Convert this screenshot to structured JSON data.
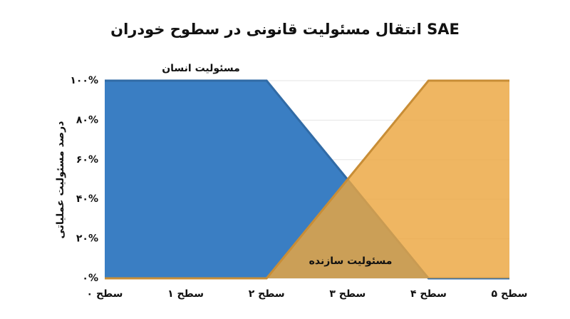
{
  "chart_data": {
    "type": "area",
    "title": "انتقال مسئولیت قانونی در سطوح خودران SAE",
    "y_label": "درصد مسئولیت عملیاتی",
    "categories": [
      "سطح ٠",
      "سطح ۱",
      "سطح ۲",
      "سطح ۳",
      "سطح ۴",
      "سطح ۵"
    ],
    "series": [
      {
        "color": "#3a7ec3",
        "values": [
          100,
          100,
          100,
          50,
          0,
          0
        ]
      },
      {
        "color": "#eba63f",
        "values": [
          0,
          0,
          0,
          50,
          100,
          100
        ]
      }
    ],
    "annotations": [
      "مسئولیت انسان",
      "مسئولیت سازنده"
    ],
    "ylim": [
      0,
      100
    ],
    "yticks": [
      {
        "value": 0,
        "label": "٠%"
      },
      {
        "value": 20,
        "label": "۲۰%"
      },
      {
        "value": 40,
        "label": "۴۰%"
      },
      {
        "value": 60,
        "label": "۶۰%"
      },
      {
        "value": 80,
        "label": "۸۰%"
      },
      {
        "value": 100,
        "label": "۱۰۰%"
      }
    ],
    "grid": true
  }
}
